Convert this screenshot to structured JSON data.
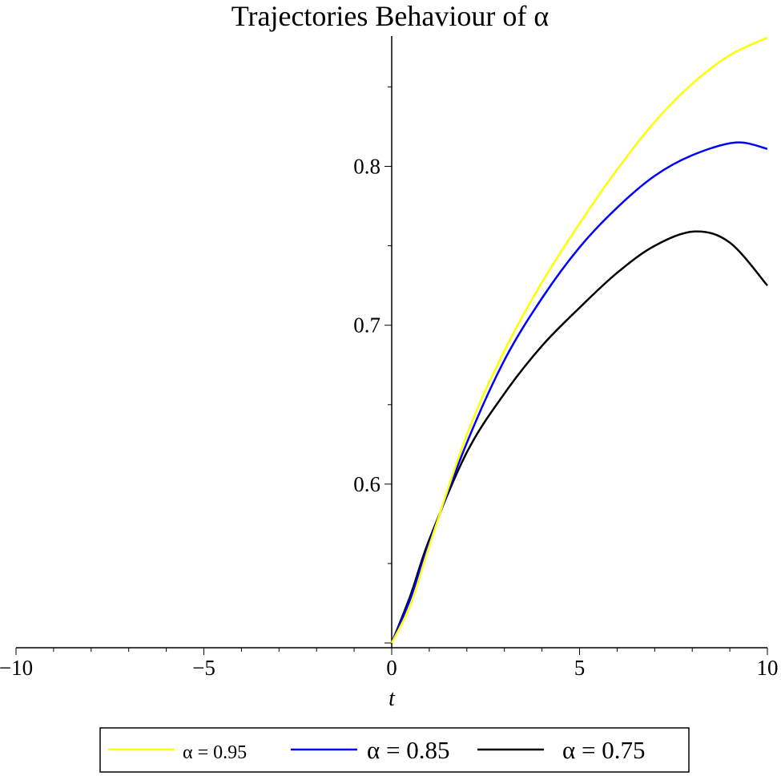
{
  "chart_data": {
    "type": "line",
    "title": "Trajectories Behaviour of α",
    "xlabel": "t",
    "ylabel": "",
    "xlim": [
      -10,
      10
    ],
    "ylim": [
      0.497,
      0.882
    ],
    "x_ticks": [
      -10,
      -5,
      0,
      5,
      10
    ],
    "x_tick_labels": [
      "−10",
      "−5",
      "0",
      "5",
      "10"
    ],
    "y_ticks": [
      0.6,
      0.7,
      0.8
    ],
    "y_tick_labels": [
      "0.6",
      "0.7",
      "0.8"
    ],
    "grid": false,
    "legend_position": "bottom",
    "series": [
      {
        "name": "α = 0.95",
        "color": "#ffff00",
        "x": [
          0,
          0.5,
          1,
          2,
          3,
          4,
          5,
          6,
          7,
          8,
          9,
          10
        ],
        "y": [
          0.5,
          0.524,
          0.561,
          0.631,
          0.684,
          0.727,
          0.764,
          0.798,
          0.828,
          0.852,
          0.87,
          0.881
        ]
      },
      {
        "name": "α = 0.85",
        "color": "#0000ff",
        "x": [
          0,
          0.5,
          1,
          2,
          3,
          4,
          5,
          6,
          7,
          8,
          9.16,
          10
        ],
        "y": [
          0.5,
          0.528,
          0.563,
          0.626,
          0.678,
          0.717,
          0.749,
          0.774,
          0.794,
          0.807,
          0.815,
          0.811
        ]
      },
      {
        "name": "α = 0.75",
        "color": "#000000",
        "x": [
          0,
          0.5,
          1,
          2,
          3,
          4,
          5,
          6,
          7,
          8.06,
          9,
          10
        ],
        "y": [
          0.5,
          0.53,
          0.565,
          0.62,
          0.657,
          0.687,
          0.711,
          0.733,
          0.75,
          0.759,
          0.752,
          0.725
        ]
      }
    ]
  }
}
